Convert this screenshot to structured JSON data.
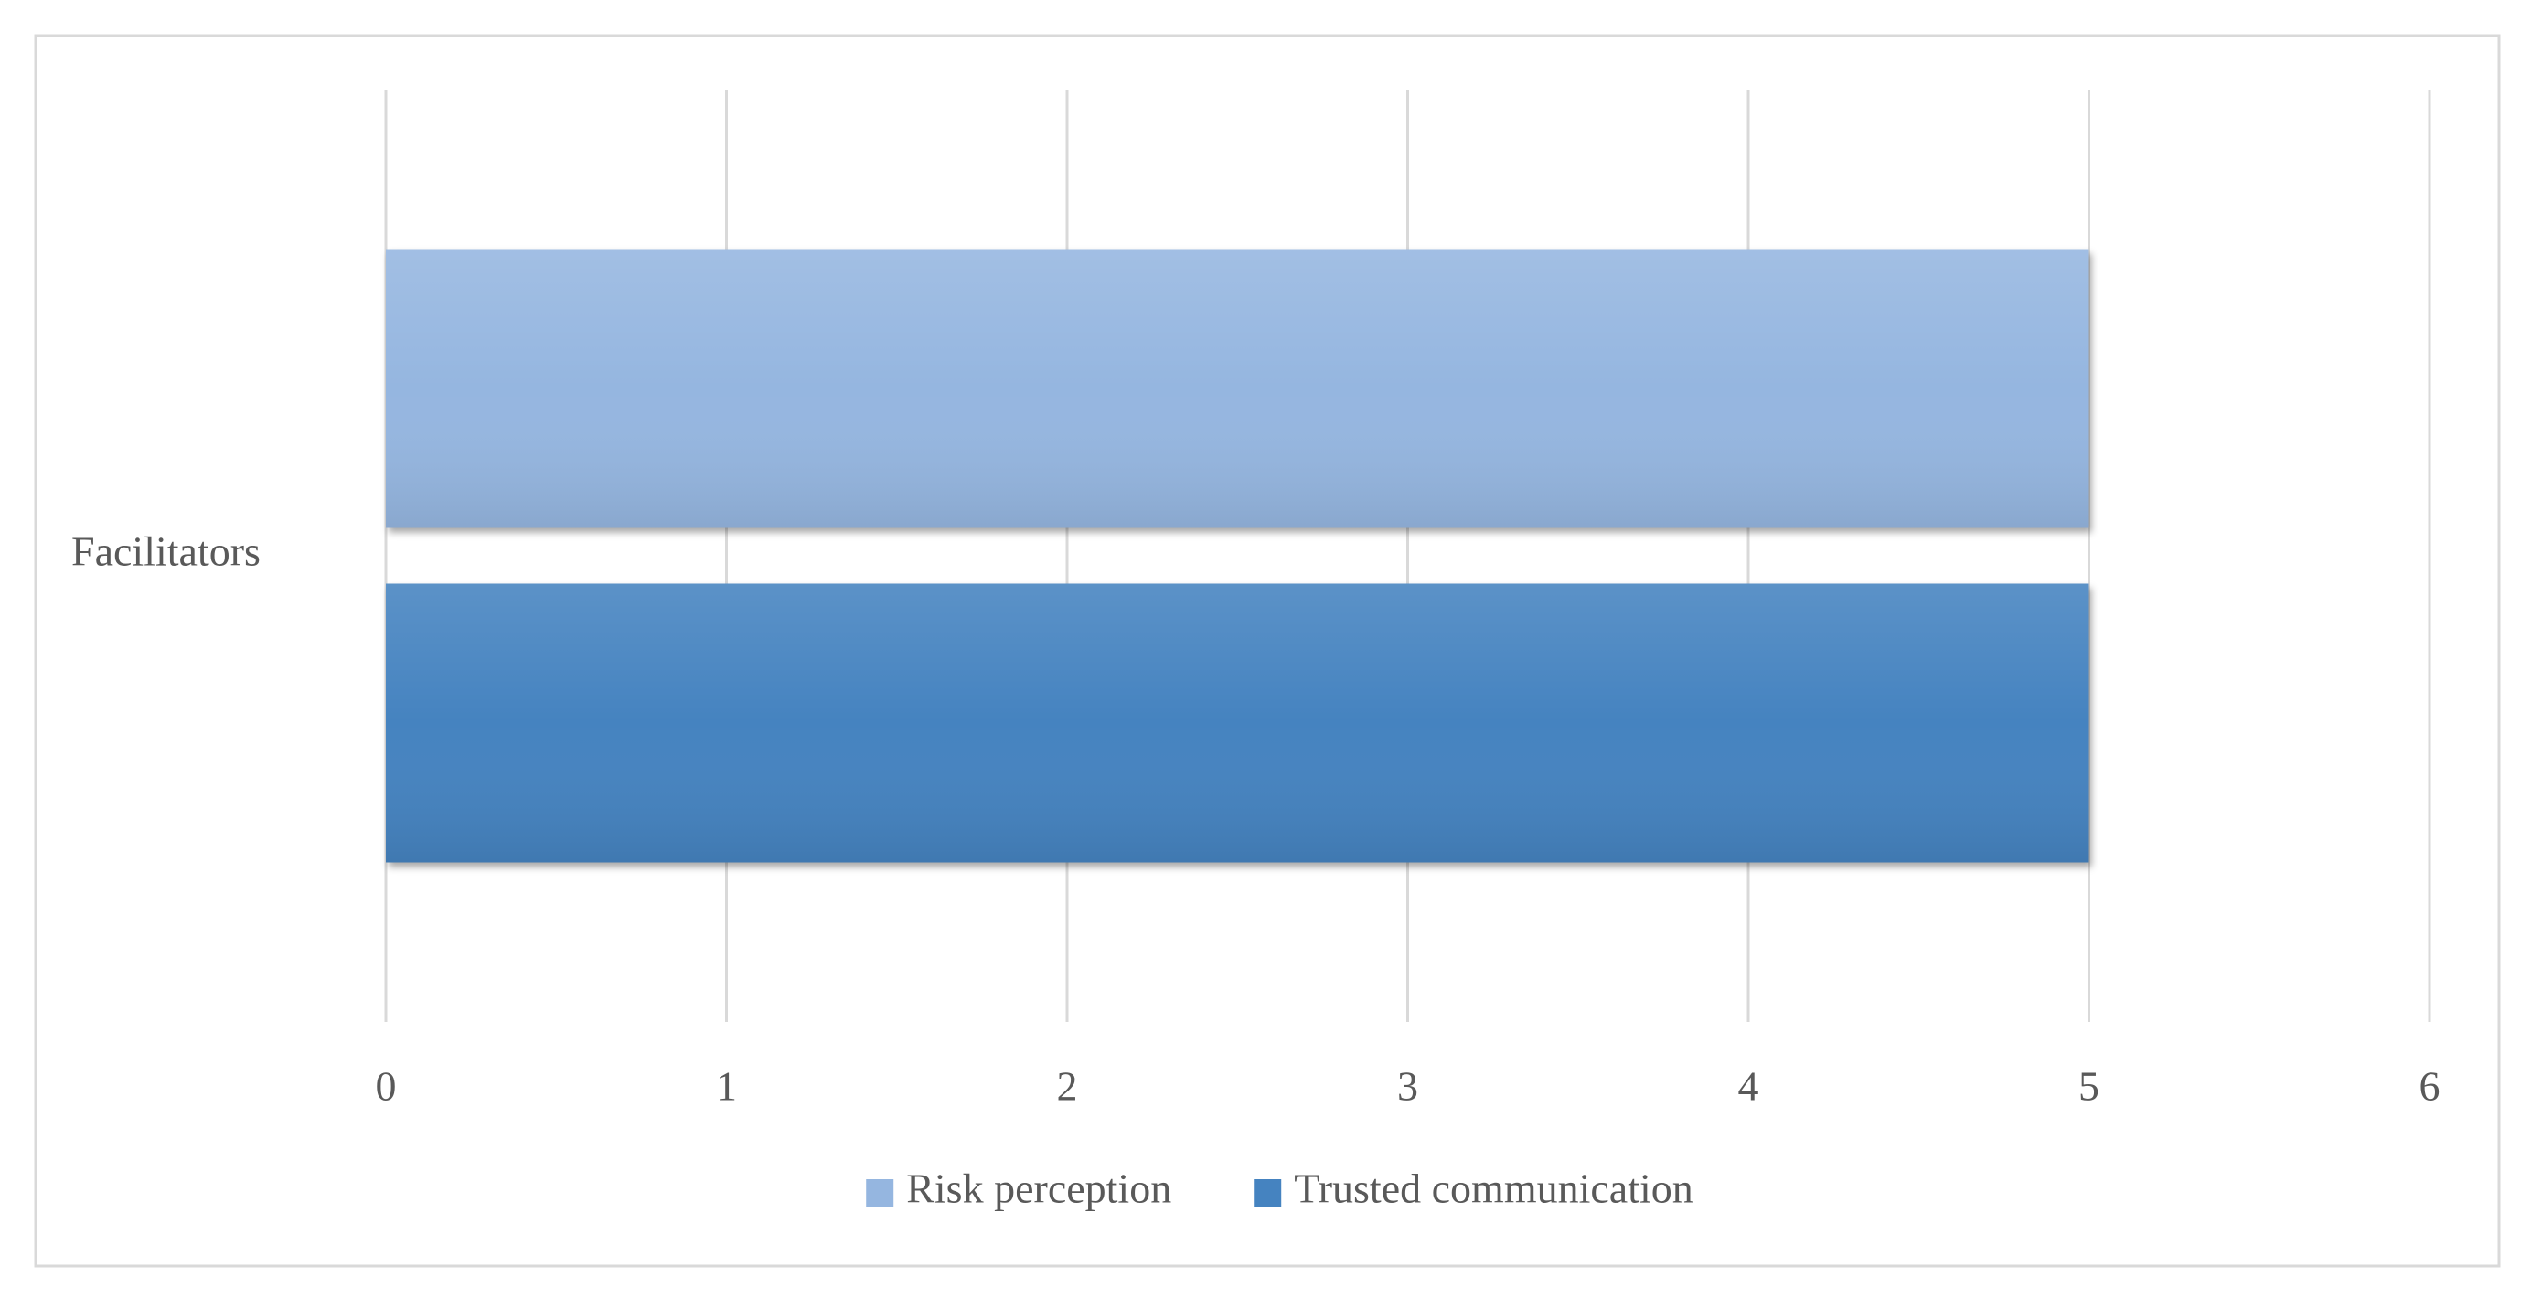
{
  "chart_data": {
    "type": "bar",
    "orientation": "horizontal",
    "categories": [
      "Facilitators"
    ],
    "series": [
      {
        "name": "Risk perception",
        "color": "#95b6e0",
        "values": [
          5
        ]
      },
      {
        "name": "Trusted communication",
        "color": "#4583c0",
        "values": [
          5
        ]
      }
    ],
    "xlim": [
      0,
      6
    ],
    "xticks": [
      0,
      1,
      2,
      3,
      4,
      5,
      6
    ],
    "grid": true,
    "legend": "bottom"
  }
}
